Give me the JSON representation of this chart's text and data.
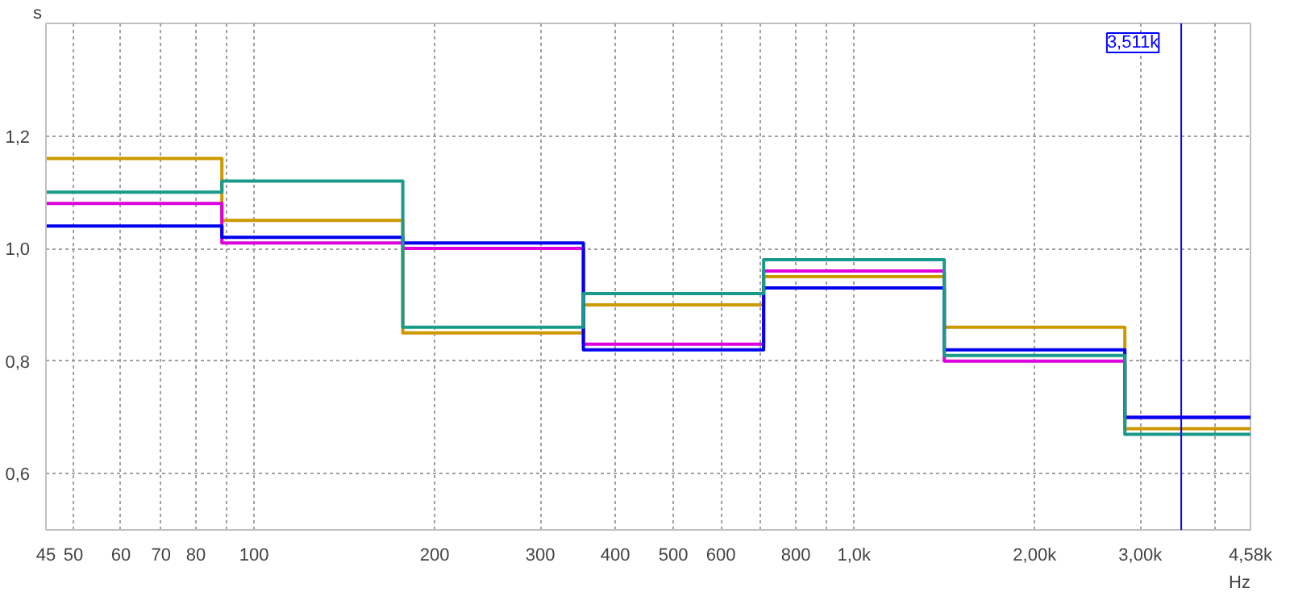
{
  "chart_data": {
    "type": "step",
    "ylabel": "s",
    "xlabel": "Hz",
    "log": "x",
    "x": [
      45,
      88.4,
      177,
      354,
      707,
      1414,
      2828,
      4580
    ],
    "series": [
      {
        "color": "#cc9900",
        "values": [
          1.16,
          1.05,
          0.85,
          0.9,
          0.95,
          0.86,
          0.68,
          0.68
        ]
      },
      {
        "color": "#dd00dd",
        "values": [
          1.08,
          1.01,
          1.0,
          0.83,
          0.96,
          0.8,
          0.7,
          0.7
        ]
      },
      {
        "color": "#0000ee",
        "values": [
          1.04,
          1.02,
          1.01,
          0.82,
          0.93,
          0.82,
          0.7,
          0.7
        ]
      },
      {
        "color": "#1a9a8a",
        "values": [
          1.1,
          1.12,
          0.86,
          0.92,
          0.98,
          0.81,
          0.67,
          0.67
        ]
      }
    ],
    "xlim": [
      45,
      4580
    ],
    "xticks": [
      45,
      50,
      60,
      70,
      80,
      {
        "value": 90,
        "label": null
      },
      100,
      200,
      300,
      400,
      500,
      600,
      {
        "value": 700,
        "label": null
      },
      800,
      {
        "value": 900,
        "label": null
      },
      {
        "value": 1000,
        "label": "1,0k"
      },
      {
        "value": 2000,
        "label": "2,00k"
      },
      {
        "value": 3000,
        "label": "3,00k"
      },
      {
        "value": 4000,
        "label": null
      },
      {
        "value": 4580,
        "label": "4,58k"
      }
    ],
    "ylim": [
      0.5,
      1.4
    ],
    "yticks": [
      {
        "value": 0.6,
        "label": "0,6"
      },
      {
        "value": 0.8,
        "label": "0,8"
      },
      {
        "value": 1.0,
        "label": "1,0"
      },
      {
        "value": 1.2,
        "label": "1,2"
      }
    ],
    "grid": true,
    "line_style": "solid",
    "ref_lines": [
      {
        "axis": "x",
        "value": 3511,
        "label": "3,511k",
        "color": "#0000ff"
      }
    ]
  }
}
